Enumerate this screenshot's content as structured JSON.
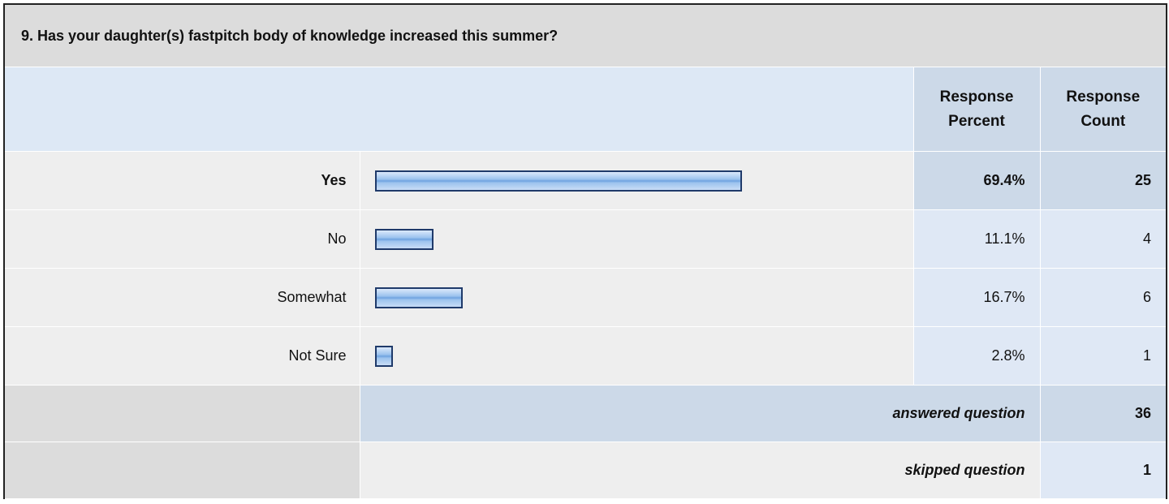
{
  "title": "9. Has your daughter(s) fastpitch body of knowledge increased this summer?",
  "headers": {
    "percent": "Response Percent",
    "count": "Response Count"
  },
  "rows": [
    {
      "label": "Yes",
      "percent": 69.4,
      "percent_label": "69.4%",
      "count": 25
    },
    {
      "label": "No",
      "percent": 11.1,
      "percent_label": "11.1%",
      "count": 4
    },
    {
      "label": "Somewhat",
      "percent": 16.7,
      "percent_label": "16.7%",
      "count": 6
    },
    {
      "label": "Not Sure",
      "percent": 2.8,
      "percent_label": "2.8%",
      "count": 1
    }
  ],
  "footer": {
    "answered": {
      "label": "answered question",
      "count": 36
    },
    "skipped": {
      "label": "skipped question",
      "count": 1
    }
  }
}
